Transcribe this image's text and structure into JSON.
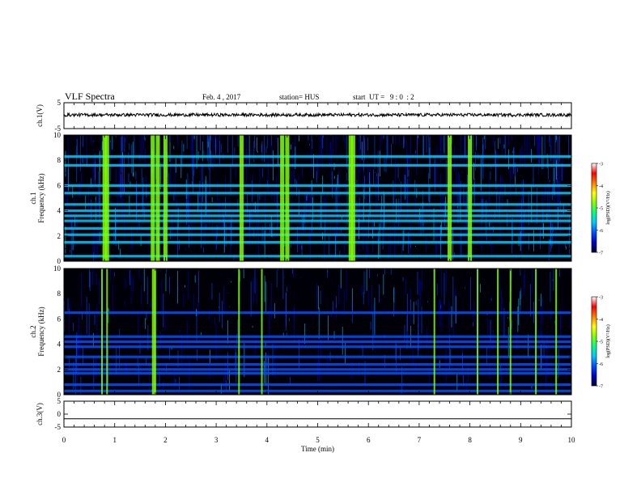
{
  "header": {
    "title": "VLF Spectra",
    "date": "Feb. 4 , 2017",
    "station": "station= HUS",
    "start_time": "start  UT =   9 : 0  : 2"
  },
  "colors": {
    "spectrogram_background": "#000008",
    "colormap": [
      "#000030",
      "#0000c8",
      "#0050ff",
      "#00c8ff",
      "#00ff80",
      "#80ff00",
      "#ffff00",
      "#ff8000",
      "#ff0000",
      "#ffffff"
    ]
  },
  "chart_data": [
    {
      "type": "line",
      "panel": "ch1-waveform",
      "ylabel": "ch.1(V)",
      "ylim": [
        -5,
        5
      ],
      "yticks": [
        "5",
        "-5"
      ],
      "x_range_min": [
        0,
        10
      ],
      "trace_level_v": 0.3,
      "trace_noise_amplitude_v": 0.6
    },
    {
      "type": "heatmap",
      "panel": "ch1-spectrogram",
      "ylabel": "ch.1\nFrequency (kHz)",
      "ylim": [
        0,
        10
      ],
      "yticks": [
        "0",
        "2",
        "4",
        "6",
        "8",
        "10"
      ],
      "x_range_min": [
        0,
        10
      ],
      "colorbar": {
        "label": "log(PSD)(V²/Hz)",
        "range": [
          -7,
          -3
        ],
        "ticks": [
          "-3",
          "-4",
          "-5",
          "-6",
          "-7"
        ]
      },
      "strong_bands_khz": [
        0.4,
        1.5,
        2.1,
        2.6,
        3.2,
        3.6,
        4.0,
        4.5,
        5.4,
        6.0,
        7.6,
        8.3
      ],
      "impulsive_bursts_min": [
        0.8,
        0.85,
        1.75,
        1.85,
        2.0,
        3.5,
        4.3,
        4.4,
        5.65,
        5.7,
        7.6,
        8.0
      ]
    },
    {
      "type": "heatmap",
      "panel": "ch2-spectrogram",
      "ylabel": "ch.2\nFrequency (kHz)",
      "ylim": [
        0,
        10
      ],
      "yticks": [
        "0",
        "2",
        "4",
        "6",
        "8",
        "10"
      ],
      "x_range_min": [
        0,
        10
      ],
      "colorbar": {
        "label": "log(PSD)(V²/Hz)",
        "range": [
          -7,
          -3
        ],
        "ticks": [
          "-3",
          "-4",
          "-5",
          "-6",
          "-7"
        ]
      },
      "strong_bands_khz": [
        0.3,
        0.8,
        1.7,
        2.0,
        2.4,
        3.0,
        3.8,
        4.2,
        4.6,
        6.5
      ],
      "impulsive_bursts_min": [
        0.75,
        0.85,
        1.75,
        1.78,
        1.8,
        3.45,
        3.9,
        7.3,
        8.15,
        8.55,
        8.8,
        9.3,
        9.7
      ]
    },
    {
      "type": "line",
      "panel": "ch3-waveform",
      "ylabel": "ch.3(V)",
      "ylim": [
        -5,
        5
      ],
      "yticks": [
        "5",
        "0",
        "-5"
      ],
      "x_range_min": [
        0,
        10
      ],
      "trace_level_v": -1.8
    }
  ],
  "time_axis": {
    "label": "Time  (min)",
    "ticks": [
      "0",
      "1",
      "2",
      "3",
      "4",
      "5",
      "6",
      "7",
      "8",
      "9",
      "10"
    ]
  }
}
